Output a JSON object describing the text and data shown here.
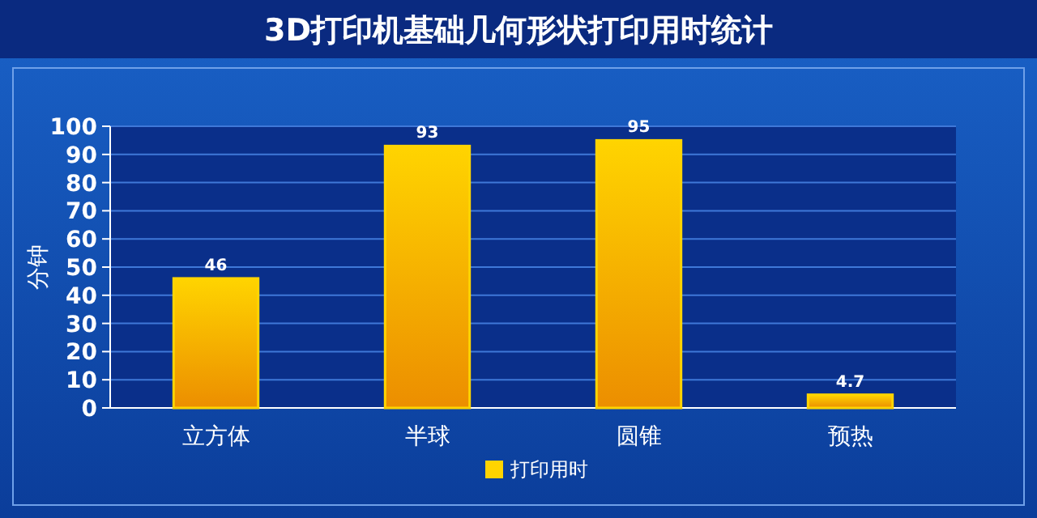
{
  "chart_data": {
    "type": "bar",
    "title": "3D打印机基础几何形状打印用时统计",
    "ylabel": "分钟",
    "categories": [
      "立方体",
      "半球",
      "圆锥",
      "预热"
    ],
    "series": [
      {
        "name": "打印用时",
        "color": "#ffd400",
        "values": [
          46,
          93,
          95,
          4.7
        ]
      }
    ],
    "ylim": [
      0,
      100
    ],
    "yticks": [
      0,
      10,
      20,
      30,
      40,
      50,
      60,
      70,
      80,
      90,
      100
    ],
    "grid": "y",
    "legend": "bottom",
    "data_labels": true
  }
}
